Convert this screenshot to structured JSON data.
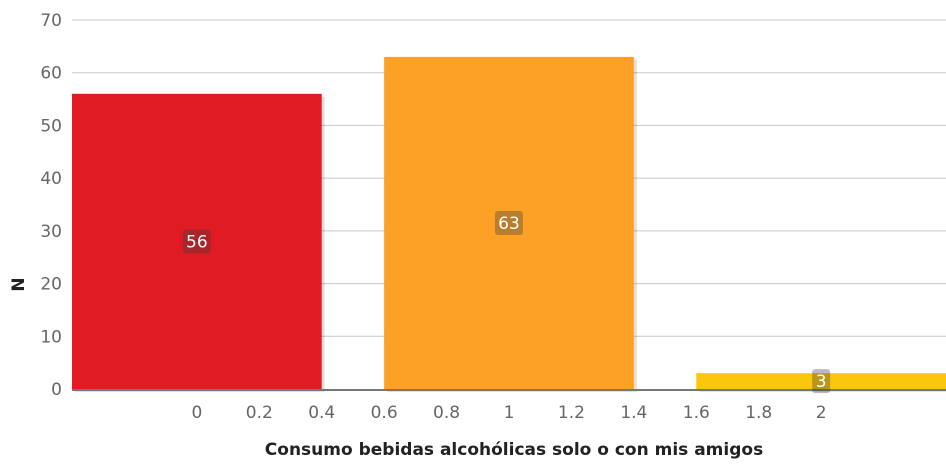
{
  "chart_data": {
    "type": "bar",
    "title": "",
    "xlabel": "Consumo bebidas alcohólicas solo o con mis amigos",
    "ylabel": "N",
    "x": [
      0,
      1,
      2
    ],
    "values": [
      56,
      63,
      3
    ],
    "colors": [
      "#e01b24",
      "#fca126",
      "#fbc70d"
    ],
    "data_labels": [
      "56",
      "63",
      "3"
    ],
    "bar_width": 0.8,
    "xlim": [
      -0.4,
      2.4
    ],
    "ylim": [
      0,
      70
    ],
    "x_ticks": [
      0,
      0.2,
      0.4,
      0.6,
      0.8,
      1,
      1.2,
      1.4,
      1.6,
      1.8,
      2
    ],
    "x_tick_labels": [
      "0",
      "0.2",
      "0.4",
      "0.6",
      "0.8",
      "1",
      "1.2",
      "1.4",
      "1.6",
      "1.8",
      "2"
    ],
    "y_ticks": [
      0,
      10,
      20,
      30,
      40,
      50,
      60,
      70
    ],
    "y_tick_labels": [
      "0",
      "10",
      "20",
      "30",
      "40",
      "50",
      "60",
      "70"
    ],
    "grid": true,
    "legend": "none"
  }
}
